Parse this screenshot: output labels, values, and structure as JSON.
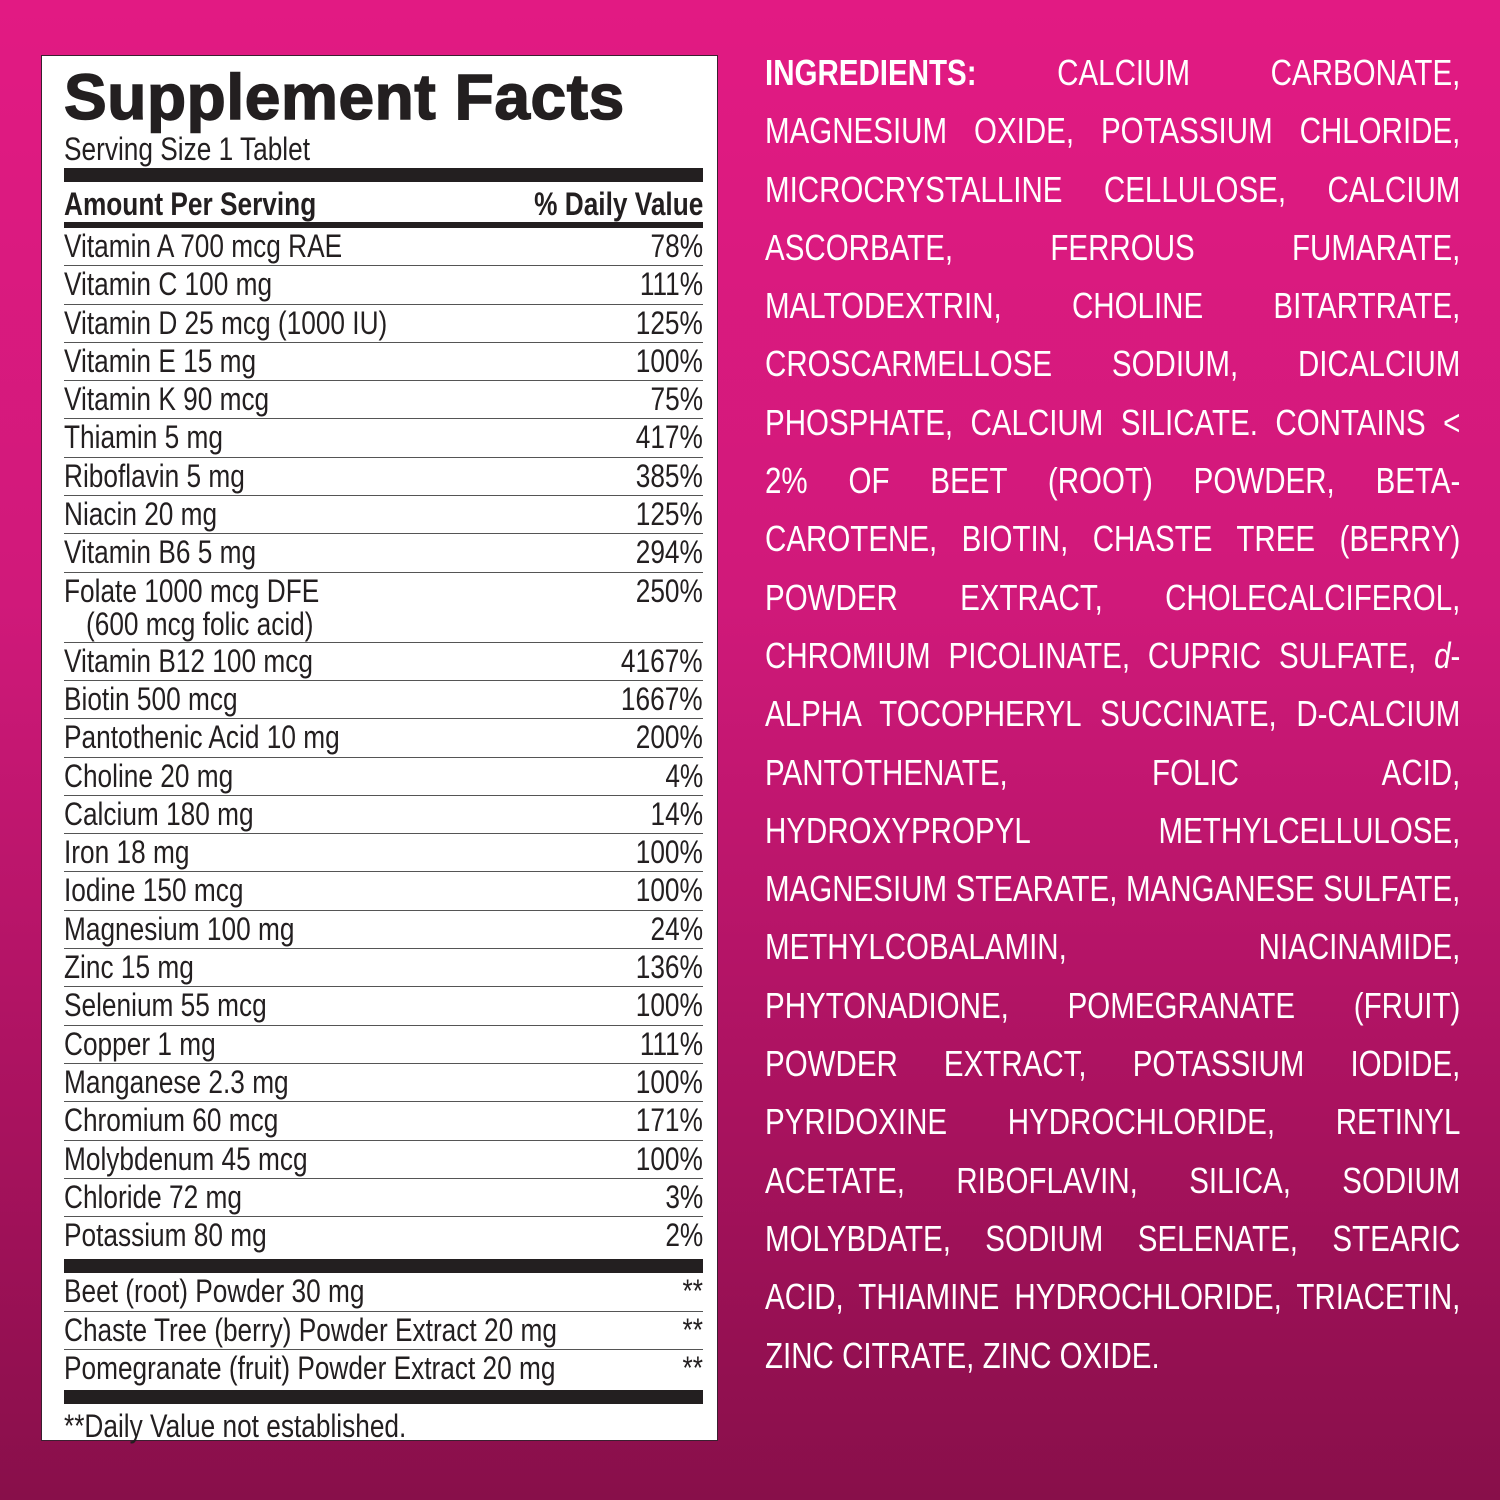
{
  "label": {
    "title": "Supplement Facts",
    "serving_size": "Serving Size 1 Tablet",
    "header_left": "Amount Per Serving",
    "header_right": "% Daily Value",
    "nutrients": [
      {
        "name": "Vitamin A 700 mcg RAE",
        "dv": "78%"
      },
      {
        "name": "Vitamin C 100 mg",
        "dv": "111%"
      },
      {
        "name": "Vitamin D 25 mcg (1000 IU)",
        "dv": "125%"
      },
      {
        "name": "Vitamin E 15 mg",
        "dv": "100%"
      },
      {
        "name": "Vitamin K 90 mcg",
        "dv": "75%"
      },
      {
        "name": "Thiamin 5 mg",
        "dv": "417%"
      },
      {
        "name": "Riboflavin 5 mg",
        "dv": "385%"
      },
      {
        "name": "Niacin 20 mg",
        "dv": "125%"
      },
      {
        "name": "Vitamin B6 5 mg",
        "dv": "294%"
      },
      {
        "name": "Folate 1000 mcg DFE",
        "sub": "(600 mcg folic acid)",
        "dv": "250%"
      },
      {
        "name": "Vitamin B12 100 mcg",
        "dv": "4167%"
      },
      {
        "name": "Biotin 500 mcg",
        "dv": "1667%"
      },
      {
        "name": "Pantothenic Acid 10 mg",
        "dv": "200%"
      },
      {
        "name": "Choline 20 mg",
        "dv": "4%"
      },
      {
        "name": "Calcium 180 mg",
        "dv": "14%"
      },
      {
        "name": "Iron 18 mg",
        "dv": "100%"
      },
      {
        "name": "Iodine 150 mcg",
        "dv": "100%"
      },
      {
        "name": "Magnesium 100 mg",
        "dv": "24%"
      },
      {
        "name": "Zinc 15 mg",
        "dv": "136%"
      },
      {
        "name": "Selenium 55 mcg",
        "dv": "100%"
      },
      {
        "name": "Copper 1 mg",
        "dv": "111%"
      },
      {
        "name": "Manganese 2.3 mg",
        "dv": "100%"
      },
      {
        "name": "Chromium 60 mcg",
        "dv": "171%"
      },
      {
        "name": "Molybdenum 45 mcg",
        "dv": "100%"
      },
      {
        "name": "Chloride 72 mg",
        "dv": "3%"
      },
      {
        "name": "Potassium 80 mg",
        "dv": "2%"
      }
    ],
    "others": [
      {
        "name": "Beet (root) Powder 30 mg",
        "dv": "**"
      },
      {
        "name": "Chaste Tree (berry) Powder Extract 20 mg",
        "dv": "**"
      },
      {
        "name": "Pomegranate (fruit) Powder Extract 20 mg",
        "dv": "**"
      }
    ],
    "footnote": "**Daily Value not established."
  },
  "ingredients": {
    "heading": "INGREDIENTS:",
    "text_before_italic": " CALCIUM CARBONATE, MAGNESIUM OXIDE, POTASSIUM CHLORIDE, MICROCRYSTALLINE CELLULOSE, CALCIUM ASCORBATE, FERROUS FUMARATE, MALTODEXTRIN, CHOLINE BITARTRATE, CROSCARMELLOSE SODIUM, DICALCIUM PHOSPHATE, CALCIUM SILICATE. CONTAINS < 2% OF BEET (ROOT) POWDER, BETA-CAROTENE, BIOTIN, CHASTE TREE (BERRY) POWDER EXTRACT, CHOLECALCIFEROL, CHROMIUM PICOLINATE, CUPRIC SULFATE, ",
    "italic": "d",
    "text_after_italic": "-ALPHA TOCOPHERYL SUCCINATE, D-CALCIUM PANTOTHENATE, FOLIC ACID, HYDROXYPROPYL METHYLCELLULOSE, MAGNESIUM STEARATE, MANGANESE SULFATE, METHYLCOBALAMIN, NIACINAMIDE, PHYTONADIONE, POMEGRANATE (FRUIT) POWDER EXTRACT, POTASSIUM IODIDE, PYRIDOXINE HYDROCHLORIDE, RETINYL ACETATE, RIBOFLAVIN, SILICA, SODIUM MOLYBDATE, SODIUM SELENATE, STEARIC ACID, THIAMINE HYDROCHLORIDE, TRIACETIN, ZINC CITRATE, ZINC OXIDE."
  },
  "colors": {
    "background_top": "#e21a83",
    "background_bottom": "#880f4a",
    "label_text": "#231f20"
  }
}
